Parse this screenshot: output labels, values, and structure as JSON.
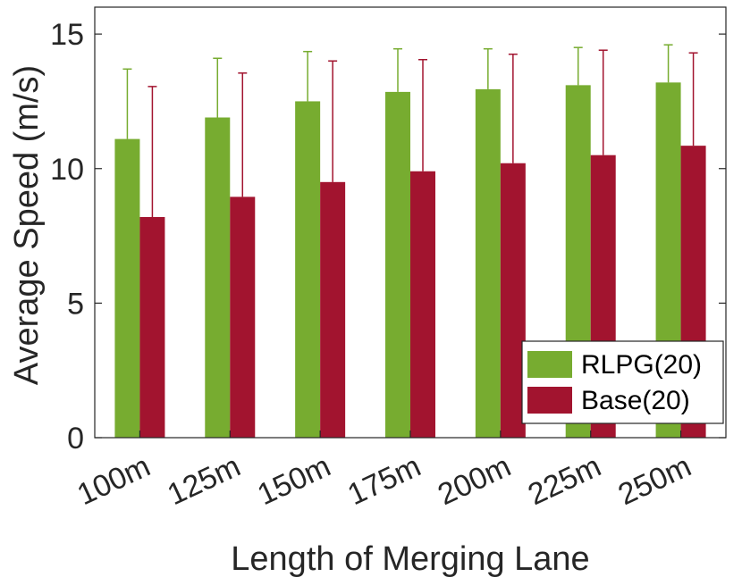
{
  "chart_data": {
    "type": "bar",
    "title": "",
    "xlabel": "Length of Merging Lane",
    "ylabel": "Average Speed (m/s)",
    "categories": [
      "100m",
      "125m",
      "150m",
      "175m",
      "200m",
      "225m",
      "250m"
    ],
    "ylim": [
      0,
      16
    ],
    "yticks": [
      0,
      5,
      10,
      15
    ],
    "grid": false,
    "legend_position": "bottom-right",
    "series": [
      {
        "name": "RLPG(20)",
        "color": "#77ac30",
        "values": [
          11.1,
          11.9,
          12.5,
          12.85,
          12.95,
          13.1,
          13.2
        ],
        "error_upper": [
          13.7,
          14.1,
          14.35,
          14.45,
          14.45,
          14.5,
          14.6
        ]
      },
      {
        "name": "Base(20)",
        "color": "#a2142f",
        "values": [
          8.2,
          8.95,
          9.5,
          9.9,
          10.2,
          10.5,
          10.85
        ],
        "error_upper": [
          13.05,
          13.55,
          14.0,
          14.05,
          14.25,
          14.4,
          14.3
        ]
      }
    ]
  }
}
